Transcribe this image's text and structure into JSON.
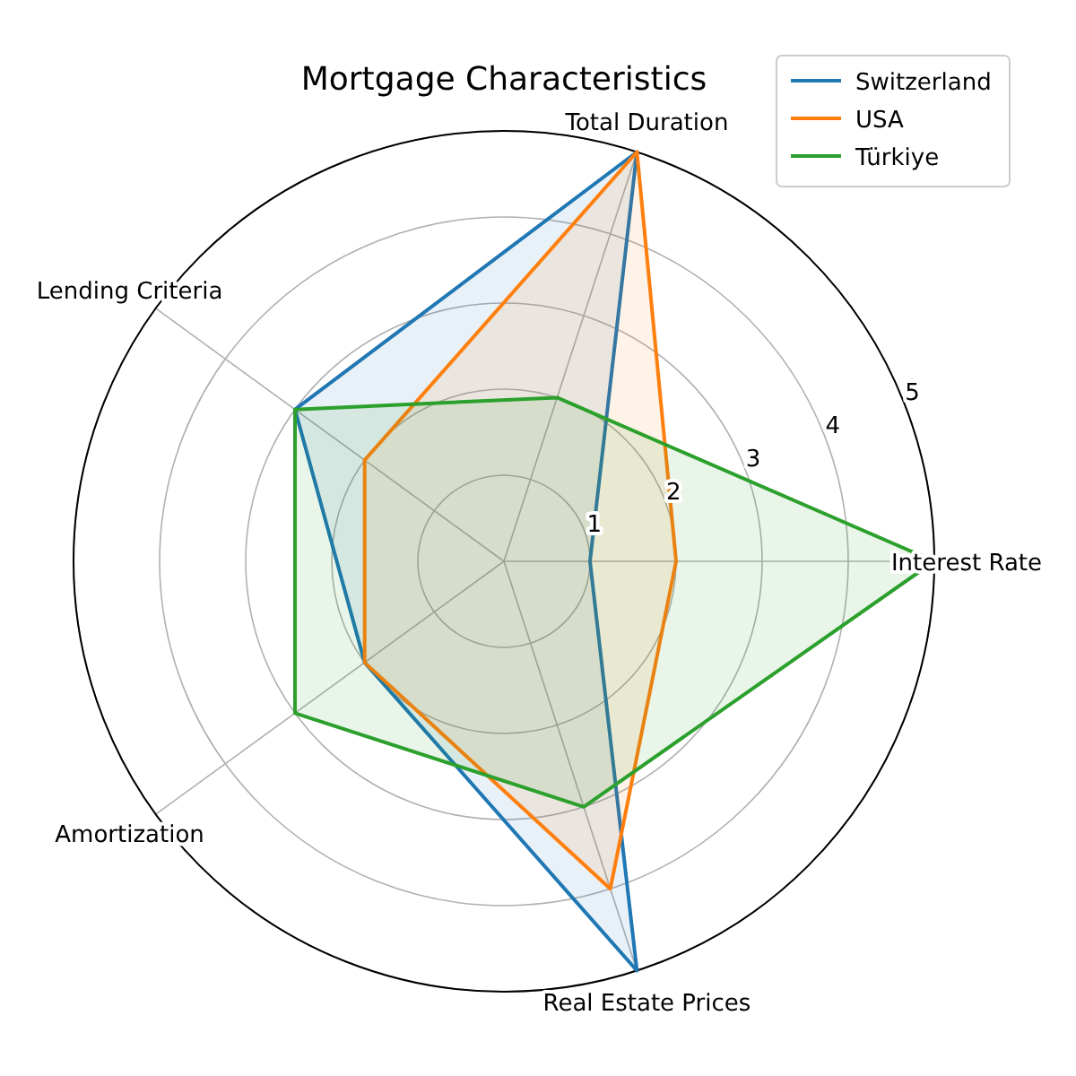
{
  "chart_data": {
    "type": "radar",
    "title": "Mortgage Characteristics",
    "categories": [
      "Total Duration",
      "Interest Rate",
      "Real Estate Prices",
      "Amortization",
      "Lending Criteria"
    ],
    "series": [
      {
        "name": "Switzerland",
        "color": "#1f77b4",
        "values": [
          5,
          1,
          5,
          2,
          3
        ]
      },
      {
        "name": "USA",
        "color": "#ff7f0e",
        "values": [
          5,
          2,
          4,
          2,
          2
        ]
      },
      {
        "name": "Türkiye",
        "color": "#2ca02c",
        "values": [
          2,
          5,
          3,
          3,
          3
        ]
      }
    ],
    "ylim": [
      0,
      5
    ],
    "yticks": [
      1,
      2,
      3,
      4,
      5
    ],
    "grid": true,
    "legend": "top right"
  }
}
